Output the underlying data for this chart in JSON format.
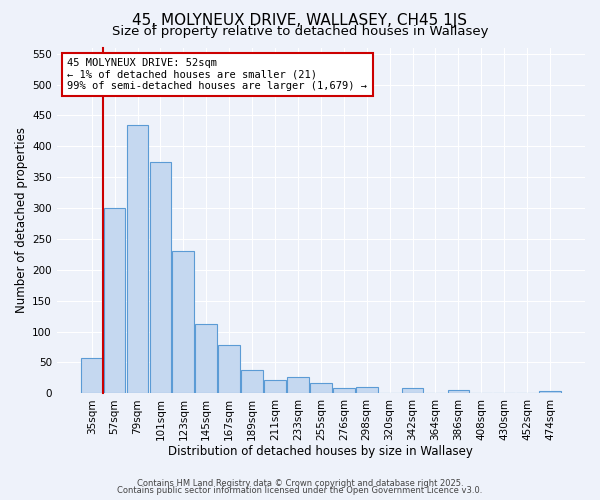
{
  "title": "45, MOLYNEUX DRIVE, WALLASEY, CH45 1JS",
  "subtitle": "Size of property relative to detached houses in Wallasey",
  "xlabel": "Distribution of detached houses by size in Wallasey",
  "ylabel": "Number of detached properties",
  "bar_labels": [
    "35sqm",
    "57sqm",
    "79sqm",
    "101sqm",
    "123sqm",
    "145sqm",
    "167sqm",
    "189sqm",
    "211sqm",
    "233sqm",
    "255sqm",
    "276sqm",
    "298sqm",
    "320sqm",
    "342sqm",
    "364sqm",
    "386sqm",
    "408sqm",
    "430sqm",
    "452sqm",
    "474sqm"
  ],
  "bar_values": [
    57,
    300,
    435,
    375,
    230,
    113,
    78,
    38,
    22,
    27,
    17,
    8,
    10,
    0,
    8,
    0,
    5,
    0,
    0,
    0,
    3
  ],
  "bar_color": "#c5d8f0",
  "bar_edge_color": "#5b9bd5",
  "ylim": [
    0,
    560
  ],
  "yticks": [
    0,
    50,
    100,
    150,
    200,
    250,
    300,
    350,
    400,
    450,
    500,
    550
  ],
  "vline_color": "#cc0000",
  "annotation_title": "45 MOLYNEUX DRIVE: 52sqm",
  "annotation_line1": "← 1% of detached houses are smaller (21)",
  "annotation_line2": "99% of semi-detached houses are larger (1,679) →",
  "annotation_box_color": "#cc0000",
  "background_color": "#eef2fa",
  "footer1": "Contains HM Land Registry data © Crown copyright and database right 2025.",
  "footer2": "Contains public sector information licensed under the Open Government Licence v3.0.",
  "title_fontsize": 11,
  "subtitle_fontsize": 9.5,
  "axis_label_fontsize": 8.5,
  "tick_fontsize": 7.5,
  "annotation_fontsize": 7.5,
  "footer_fontsize": 6.0
}
